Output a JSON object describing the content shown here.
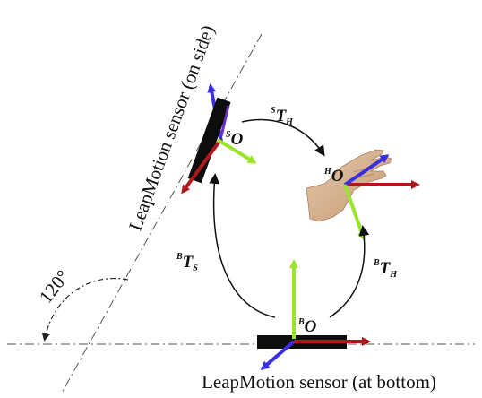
{
  "labels": {
    "side_sensor": "LeapMotion sensor (on side)",
    "bottom_sensor": "LeapMotion sensor (at bottom)",
    "angle": "120°"
  },
  "frames": {
    "sensor_side": {
      "superscript": "S",
      "symbol": "O"
    },
    "hand": {
      "superscript": "H",
      "symbol": "O"
    },
    "sensor_bottom": {
      "superscript": "B",
      "symbol": "O"
    }
  },
  "transforms": {
    "s_to_h": {
      "superscript": "S",
      "symbol": "T",
      "subscript": "H"
    },
    "b_to_s": {
      "superscript": "B",
      "symbol": "T",
      "subscript": "S"
    },
    "b_to_h": {
      "superscript": "B",
      "symbol": "T",
      "subscript": "H"
    }
  },
  "colors": {
    "axis_red": "#b0181c",
    "axis_green": "#9be32c",
    "axis_blue": "#3a2fe0",
    "sensor_body": "#0d0d0d",
    "dashdot_line": "#555555",
    "skin": "#d9b896"
  }
}
